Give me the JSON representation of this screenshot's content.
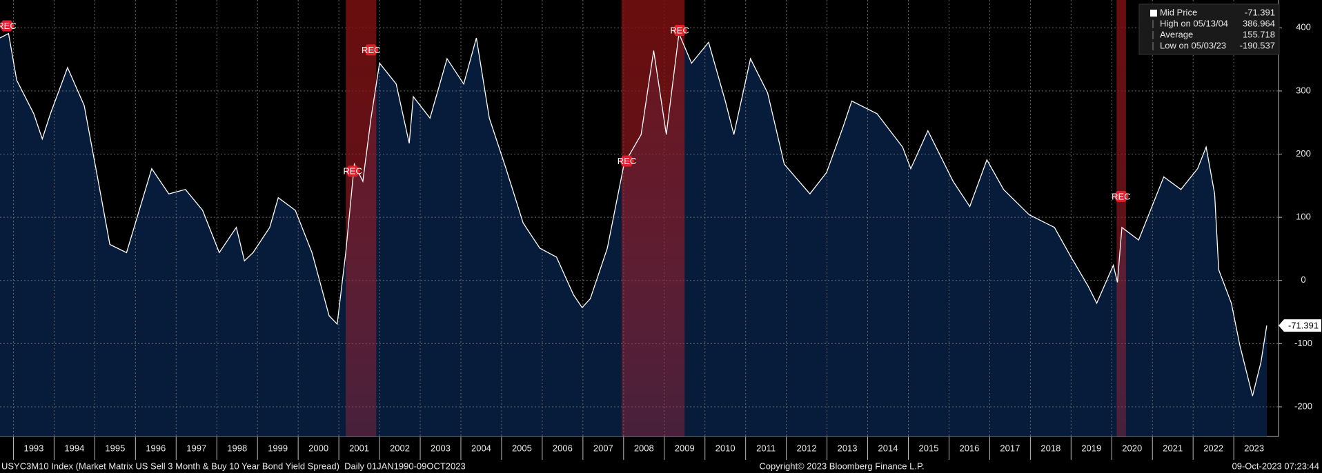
{
  "chart_data": {
    "type": "line",
    "xlim": [
      1992.67,
      2024.1
    ],
    "ylim": [
      -247,
      444
    ],
    "xticks": [
      1993,
      1994,
      1995,
      1996,
      1997,
      1998,
      1999,
      2000,
      2001,
      2002,
      2003,
      2004,
      2005,
      2006,
      2007,
      2008,
      2009,
      2010,
      2011,
      2012,
      2013,
      2014,
      2015,
      2016,
      2017,
      2018,
      2019,
      2020,
      2021,
      2022,
      2023
    ],
    "yticks": [
      400,
      300,
      200,
      100,
      0,
      -100,
      -200
    ],
    "grid": true,
    "area_color": "#061c3a",
    "recession_color": "#b4141e",
    "recessions": [
      [
        2001.17,
        2001.92
      ],
      [
        2007.95,
        2009.5
      ],
      [
        2020.12,
        2020.35
      ]
    ],
    "annotations": [
      {
        "text": "REC",
        "x": 1992.67,
        "y": 403
      },
      {
        "text": "REC",
        "x": 2001.79,
        "y": 365
      },
      {
        "text": "REC",
        "x": 2001.34,
        "y": 173
      },
      {
        "text": "REC",
        "x": 2008.08,
        "y": 189
      },
      {
        "text": "REC",
        "x": 2009.38,
        "y": 396
      },
      {
        "text": "REC",
        "x": 2020.23,
        "y": 133
      }
    ],
    "series": [
      {
        "name": "Mid Price",
        "color": "#ffffff",
        "x": [
          1992.67,
          1992.88,
          1993.08,
          1993.5,
          1993.71,
          1993.91,
          1994.33,
          1994.74,
          1995.16,
          1995.37,
          1995.78,
          1996.4,
          1996.82,
          1997.23,
          1997.65,
          1998.06,
          1998.48,
          1998.68,
          1998.89,
          1999.3,
          1999.51,
          1999.93,
          2000.34,
          2000.76,
          2000.96,
          2001.17,
          2001.38,
          2001.59,
          2001.79,
          2002.0,
          2002.41,
          2002.73,
          2002.83,
          2003.24,
          2003.66,
          2004.07,
          2004.38,
          2004.7,
          2005.11,
          2005.53,
          2005.94,
          2006.35,
          2006.77,
          2006.98,
          2007.18,
          2007.6,
          2008.01,
          2008.43,
          2008.74,
          2009.05,
          2009.36,
          2009.67,
          2010.09,
          2010.5,
          2010.71,
          2011.12,
          2011.54,
          2011.95,
          2012.58,
          2012.99,
          2013.4,
          2013.61,
          2014.23,
          2014.86,
          2015.06,
          2015.48,
          2016.1,
          2016.51,
          2016.93,
          2017.34,
          2017.97,
          2018.59,
          2019.0,
          2019.42,
          2019.63,
          2020.04,
          2020.14,
          2020.25,
          2020.66,
          2021.28,
          2021.7,
          2022.11,
          2022.32,
          2022.53,
          2022.63,
          2022.94,
          2023.15,
          2023.46,
          2023.67,
          2023.81
        ],
        "values": [
          384,
          391,
          317,
          264,
          224,
          264,
          337,
          277,
          131,
          57,
          44,
          177,
          137,
          144,
          111,
          44,
          84,
          31,
          44,
          84,
          131,
          111,
          44,
          -56,
          -69,
          44,
          184,
          157,
          257,
          344,
          311,
          217,
          291,
          257,
          351,
          311,
          384,
          257,
          177,
          91,
          51,
          37,
          -23,
          -43,
          -29,
          51,
          184,
          231,
          364,
          231,
          391,
          344,
          377,
          284,
          231,
          351,
          297,
          184,
          137,
          171,
          244,
          284,
          264,
          211,
          177,
          237,
          157,
          117,
          191,
          144,
          104,
          84,
          37,
          -9,
          -36,
          24,
          -3,
          84,
          64,
          164,
          144,
          177,
          211,
          137,
          17,
          -36,
          -103,
          -183,
          -129,
          -71.391
        ]
      }
    ],
    "legend": [
      {
        "label": "Mid Price",
        "value": -71.391
      },
      {
        "label": "High on 05/13/04",
        "value": 386.964
      },
      {
        "label": "Average",
        "value": 155.718
      },
      {
        "label": "Low on 05/03/23",
        "value": -190.537
      }
    ]
  },
  "footer": {
    "left": "USYC3M10 Index (Market Matrix US Sell 3 Month & Buy 10 Year Bond Yield Spread)  Daily 01JAN1990-09OCT2023",
    "center": "Copyright© 2023 Bloomberg Finance L.P.",
    "right": "09-Oct-2023 07:23:44"
  }
}
